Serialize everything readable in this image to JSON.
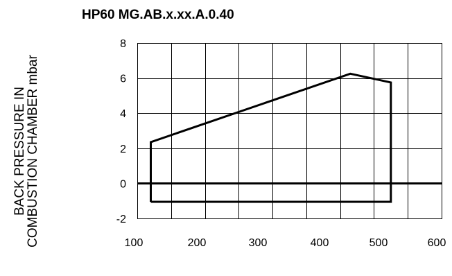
{
  "chart_data": {
    "type": "line",
    "title": "HP60 MG.AB.x.xx.A.0.40",
    "ylabel_lines": [
      "BACK PRESSURE IN",
      "COMBUSTION CHAMBER mbar"
    ],
    "xlabel": "",
    "xlim": [
      100,
      600
    ],
    "ylim": [
      -2,
      8
    ],
    "x_ticks": [
      100,
      200,
      300,
      400,
      500,
      600
    ],
    "y_ticks": [
      -2,
      0,
      2,
      4,
      6,
      8
    ],
    "grid": true,
    "x_gridlines": [
      150,
      200,
      250,
      300,
      350,
      400,
      450,
      500,
      550,
      600
    ],
    "y_gridlines": [
      -2,
      0,
      2,
      4,
      6,
      8
    ],
    "zero_line": 0,
    "series": [
      {
        "x": [
          170,
          170,
          465,
          525,
          525,
          170
        ],
        "y": [
          -1.05,
          2.35,
          6.25,
          5.75,
          -1.05,
          -1.05
        ]
      }
    ]
  }
}
